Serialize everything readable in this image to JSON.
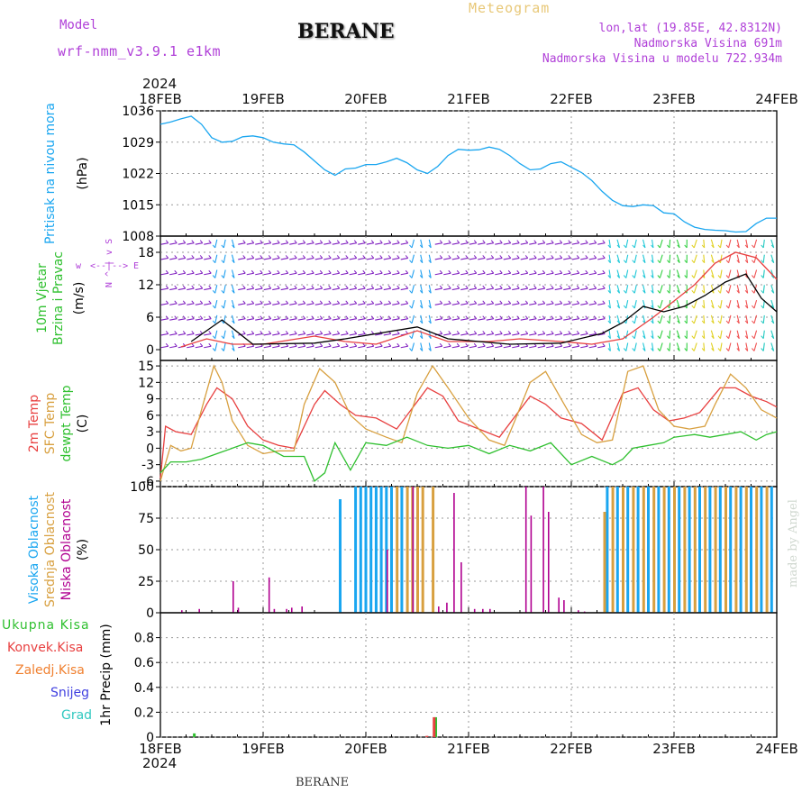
{
  "header": {
    "model_label": "Model",
    "model_name": "wrf-nmm_v3.9.1 e1km",
    "station": "BERANE",
    "chart_kind": "Meteogram",
    "lonlat": "lon,lat (19.85E, 42.8312N)",
    "altitude": "Nadmorska Visina 691m",
    "model_altitude": "Nadmorska Visina u modelu 722.934m",
    "year_top": "2024",
    "year_bottom": "2024",
    "footer_station": "BERANE",
    "watermark": "made by Angel"
  },
  "colors": {
    "purple_text": "#b040d8",
    "cyan": "#1aa6f0",
    "red": "#e84040",
    "orange_tan": "#d8a040",
    "green": "#30c030",
    "magenta": "#b00090",
    "blue_label": "#4040e0",
    "teal_label": "#30c8c0",
    "orange_label": "#f08030",
    "wind_purple": "#8020c0",
    "wind_cyan": "#20a0f0",
    "watermark": "#d0d8d0"
  },
  "chart_data": [
    {
      "type": "line",
      "panel": "pressure",
      "ylabel_lines": [
        "Pritisak na nivou mora"
      ],
      "unit": "(hPa)",
      "ylim": [
        1008,
        1036
      ],
      "yticks": [
        1008,
        1015,
        1022,
        1029,
        1036
      ],
      "xlim": [
        0,
        6
      ],
      "xticks": [
        "18FEB",
        "19FEB",
        "20FEB",
        "21FEB",
        "22FEB",
        "23FEB",
        "24FEB"
      ],
      "grid": true,
      "series": [
        {
          "color": "#1aa6f0",
          "x": [
            0,
            0.1,
            0.2,
            0.3,
            0.4,
            0.5,
            0.6,
            0.7,
            0.8,
            0.9,
            1.0,
            1.1,
            1.2,
            1.3,
            1.4,
            1.5,
            1.6,
            1.7,
            1.8,
            1.9,
            2.0,
            2.1,
            2.2,
            2.3,
            2.4,
            2.5,
            2.6,
            2.7,
            2.8,
            2.9,
            3.0,
            3.1,
            3.2,
            3.3,
            3.4,
            3.5,
            3.6,
            3.7,
            3.8,
            3.9,
            4.0,
            4.1,
            4.2,
            4.3,
            4.4,
            4.5,
            4.6,
            4.7,
            4.8,
            4.9,
            5.0,
            5.1,
            5.2,
            5.3,
            5.4,
            5.5,
            5.6,
            5.7,
            5.8,
            5.9,
            6.0
          ],
          "y": [
            1033.0,
            1033.5,
            1034.2,
            1034.8,
            1033.0,
            1030.0,
            1029.0,
            1029.2,
            1030.2,
            1030.4,
            1030.0,
            1029.0,
            1028.6,
            1028.4,
            1026.8,
            1024.8,
            1022.8,
            1021.6,
            1023.0,
            1023.2,
            1024.0,
            1024.0,
            1024.6,
            1025.4,
            1024.4,
            1022.8,
            1022.0,
            1023.6,
            1026.0,
            1027.4,
            1027.2,
            1027.3,
            1027.9,
            1027.4,
            1026.0,
            1024.2,
            1022.8,
            1023.0,
            1024.2,
            1024.6,
            1023.4,
            1022.2,
            1020.4,
            1018.0,
            1016.0,
            1014.8,
            1014.6,
            1015.0,
            1014.8,
            1013.2,
            1013.0,
            1011.2,
            1010.0,
            1009.5,
            1009.3,
            1009.2,
            1008.9,
            1009.0,
            1010.8,
            1012.0,
            1012.0
          ]
        }
      ]
    },
    {
      "type": "line",
      "panel": "wind",
      "ylabel_lines": [
        "10m Vjetar",
        "Brzina i Pravac"
      ],
      "unit": "(m/s)",
      "compass_labels": [
        "w",
        "<--|-->",
        "E",
        "N",
        "^",
        "|",
        "v",
        "S"
      ],
      "ylim": [
        -2,
        21
      ],
      "yticks": [
        0,
        6,
        12,
        18
      ],
      "xlim": [
        0,
        6
      ],
      "grid": true,
      "barb_levels": [
        0.5,
        2.8,
        5.6,
        8.4,
        11.2,
        14.0,
        16.8,
        19.6
      ],
      "barb_color_bands": [
        {
          "from": 0.0,
          "to": 0.5,
          "color": "#8020c0"
        },
        {
          "from": 0.5,
          "to": 0.72,
          "color": "#20a0f0"
        },
        {
          "from": 0.72,
          "to": 2.4,
          "color": "#8020c0"
        },
        {
          "from": 2.4,
          "to": 2.68,
          "color": "#20a0f0"
        },
        {
          "from": 2.68,
          "to": 4.35,
          "color": "#8020c0"
        },
        {
          "from": 4.35,
          "to": 4.8,
          "color": "#20c8d8"
        },
        {
          "from": 4.8,
          "to": 5.2,
          "color": "#30d040"
        },
        {
          "from": 5.2,
          "to": 5.5,
          "color": "#e0d020"
        },
        {
          "from": 5.5,
          "to": 5.8,
          "color": "#f05050"
        },
        {
          "from": 5.8,
          "to": 6.0,
          "color": "#20c8c0"
        }
      ],
      "series": [
        {
          "name": "",
          "color": "#e84040",
          "x": [
            0.2,
            0.45,
            0.7,
            1.0,
            1.5,
            1.8,
            2.1,
            2.5,
            2.8,
            3.2,
            3.5,
            3.9,
            4.2,
            4.5,
            4.8,
            5.0,
            5.2,
            5.4,
            5.6,
            5.8,
            6.0
          ],
          "y": [
            0.5,
            2.0,
            1.0,
            1.0,
            2.5,
            1.5,
            1.0,
            3.5,
            1.5,
            1.5,
            2.0,
            1.5,
            1.0,
            2.0,
            6.0,
            9.0,
            12.0,
            16.0,
            18.0,
            17.0,
            13.0
          ]
        },
        {
          "name": "",
          "color": "#000000",
          "x": [
            0.3,
            0.6,
            0.9,
            1.5,
            1.8,
            2.5,
            2.8,
            3.4,
            3.9,
            4.3,
            4.5,
            4.7,
            4.9,
            5.1,
            5.3,
            5.5,
            5.7,
            5.85,
            6.0
          ],
          "y": [
            1.5,
            5.5,
            1.0,
            1.2,
            2.0,
            4.2,
            2.0,
            1.0,
            1.2,
            3.0,
            5.0,
            8.0,
            7.0,
            8.0,
            10.0,
            12.5,
            14.0,
            9.5,
            7.0
          ]
        }
      ]
    },
    {
      "type": "line",
      "panel": "temperature",
      "ylabel_lines": [
        "2m Temp",
        "SFC Temp",
        "dewpt Temp"
      ],
      "unit": "(C)",
      "ylim": [
        -7,
        16
      ],
      "yticks": [
        -6,
        -3,
        0,
        3,
        6,
        9,
        12,
        15
      ],
      "xlim": [
        0,
        6
      ],
      "grid": true,
      "series": [
        {
          "name": "2m Temp",
          "color": "#e84040",
          "x": [
            0,
            0.05,
            0.15,
            0.3,
            0.45,
            0.55,
            0.7,
            0.85,
            1.0,
            1.15,
            1.3,
            1.5,
            1.6,
            1.75,
            1.9,
            2.1,
            2.3,
            2.5,
            2.6,
            2.75,
            2.9,
            3.1,
            3.3,
            3.5,
            3.6,
            3.75,
            3.9,
            4.1,
            4.3,
            4.5,
            4.65,
            4.8,
            4.95,
            5.1,
            5.25,
            5.45,
            5.6,
            5.75,
            5.9,
            6.0
          ],
          "y": [
            -5.5,
            4.0,
            3.0,
            2.5,
            8.0,
            11.0,
            9.0,
            4.0,
            1.5,
            0.5,
            0.0,
            8.0,
            10.5,
            8.0,
            6.0,
            5.5,
            3.5,
            8.5,
            11.0,
            9.5,
            5.0,
            3.5,
            2.0,
            7.0,
            9.5,
            8.0,
            5.5,
            4.5,
            1.5,
            10.0,
            11.0,
            7.0,
            5.0,
            5.5,
            6.5,
            11.0,
            11.0,
            9.5,
            8.5,
            7.5
          ]
        },
        {
          "name": "SFC Temp",
          "color": "#d8a040",
          "x": [
            0,
            0.1,
            0.2,
            0.3,
            0.4,
            0.52,
            0.6,
            0.7,
            0.85,
            1.0,
            1.15,
            1.3,
            1.4,
            1.55,
            1.7,
            1.85,
            2.0,
            2.2,
            2.35,
            2.5,
            2.65,
            2.8,
            3.0,
            3.2,
            3.35,
            3.45,
            3.6,
            3.75,
            3.9,
            4.1,
            4.25,
            4.4,
            4.55,
            4.7,
            4.85,
            5.0,
            5.15,
            5.3,
            5.4,
            5.55,
            5.7,
            5.85,
            6.0
          ],
          "y": [
            -6.0,
            0.5,
            -0.5,
            0.0,
            7.0,
            15.0,
            12.0,
            5.0,
            0.5,
            -1.0,
            -0.5,
            -0.5,
            8.0,
            14.5,
            12.0,
            6.0,
            3.5,
            2.0,
            1.0,
            10.0,
            15.0,
            11.0,
            5.5,
            1.5,
            0.5,
            5.0,
            12.0,
            14.0,
            9.0,
            2.5,
            1.0,
            1.5,
            14.0,
            15.0,
            7.0,
            4.0,
            3.5,
            4.0,
            8.0,
            13.5,
            11.0,
            7.0,
            5.5
          ]
        },
        {
          "name": "dewpt Temp",
          "color": "#30c030",
          "x": [
            0,
            0.1,
            0.25,
            0.4,
            0.55,
            0.7,
            0.85,
            1.0,
            1.2,
            1.4,
            1.5,
            1.6,
            1.7,
            1.85,
            2.0,
            2.2,
            2.4,
            2.6,
            2.8,
            3.0,
            3.2,
            3.4,
            3.6,
            3.8,
            4.0,
            4.2,
            4.4,
            4.5,
            4.6,
            4.75,
            4.9,
            5.0,
            5.2,
            5.35,
            5.5,
            5.65,
            5.8,
            5.9,
            6.0
          ],
          "y": [
            -4.5,
            -2.5,
            -2.5,
            -2.0,
            -1.0,
            0.0,
            1.0,
            0.5,
            -1.5,
            -1.5,
            -6.0,
            -4.5,
            1.0,
            -4.0,
            1.0,
            0.5,
            2.0,
            0.5,
            0.0,
            0.5,
            -1.0,
            0.5,
            -0.5,
            1.0,
            -3.0,
            -1.5,
            -3.0,
            -2.0,
            0.0,
            0.5,
            1.0,
            2.0,
            2.5,
            2.0,
            2.5,
            3.0,
            1.5,
            2.5,
            3.0
          ]
        }
      ]
    },
    {
      "type": "bar",
      "panel": "cloud",
      "ylabel_lines": [
        "Visoka Oblacnost",
        "Srednja Oblacnost",
        "Niska Oblacnost"
      ],
      "unit": "(%)",
      "ylim": [
        0,
        100
      ],
      "yticks": [
        0,
        25,
        50,
        75,
        100
      ],
      "xlim": [
        0,
        6
      ],
      "grid": true,
      "series": [
        {
          "name": "Visoka Oblacnost",
          "color": "#1aa6f0",
          "bars": [
            [
              1.75,
              90
            ],
            [
              1.9,
              100
            ],
            [
              1.95,
              100
            ],
            [
              2.0,
              100
            ],
            [
              2.05,
              100
            ],
            [
              2.1,
              100
            ],
            [
              2.15,
              100
            ],
            [
              2.2,
              100
            ],
            [
              2.25,
              100
            ],
            [
              2.35,
              100
            ],
            [
              4.35,
              100
            ],
            [
              4.45,
              100
            ],
            [
              4.55,
              100
            ],
            [
              4.65,
              100
            ],
            [
              4.75,
              100
            ],
            [
              4.85,
              100
            ],
            [
              4.95,
              100
            ],
            [
              5.05,
              100
            ],
            [
              5.15,
              100
            ],
            [
              5.25,
              100
            ],
            [
              5.35,
              100
            ],
            [
              5.45,
              100
            ],
            [
              5.55,
              100
            ],
            [
              5.65,
              100
            ],
            [
              5.75,
              100
            ],
            [
              5.85,
              100
            ],
            [
              5.95,
              100
            ]
          ]
        },
        {
          "name": "Srednja Oblacnost",
          "color": "#d8a040",
          "bars": [
            [
              2.3,
              100
            ],
            [
              2.4,
              100
            ],
            [
              2.45,
              100
            ],
            [
              2.5,
              100
            ],
            [
              2.55,
              100
            ],
            [
              2.65,
              100
            ],
            [
              4.32,
              80
            ],
            [
              4.4,
              100
            ],
            [
              4.5,
              100
            ],
            [
              4.6,
              100
            ],
            [
              4.7,
              100
            ],
            [
              4.8,
              100
            ],
            [
              4.9,
              100
            ],
            [
              5.0,
              100
            ],
            [
              5.1,
              100
            ],
            [
              5.2,
              100
            ],
            [
              5.3,
              100
            ],
            [
              5.4,
              100
            ],
            [
              5.5,
              100
            ],
            [
              5.6,
              100
            ],
            [
              5.7,
              100
            ],
            [
              5.8,
              100
            ],
            [
              5.9,
              100
            ]
          ]
        },
        {
          "name": "Niska Oblacnost",
          "color": "#b00090",
          "bars": [
            [
              0.2,
              2
            ],
            [
              0.37,
              3
            ],
            [
              0.7,
              25
            ],
            [
              0.75,
              4
            ],
            [
              1.05,
              28
            ],
            [
              1.1,
              3
            ],
            [
              1.22,
              3
            ],
            [
              1.27,
              4
            ],
            [
              1.37,
              5
            ],
            [
              2.2,
              50
            ],
            [
              2.45,
              100
            ],
            [
              2.7,
              5
            ],
            [
              2.78,
              8
            ],
            [
              2.85,
              95
            ],
            [
              2.92,
              40
            ],
            [
              3.05,
              3
            ],
            [
              3.13,
              3
            ],
            [
              3.2,
              3
            ],
            [
              3.55,
              100
            ],
            [
              3.6,
              77
            ],
            [
              3.72,
              100
            ],
            [
              3.77,
              80
            ],
            [
              3.87,
              12
            ],
            [
              3.92,
              10
            ],
            [
              4.06,
              2
            ],
            [
              4.12,
              1
            ]
          ]
        }
      ]
    },
    {
      "type": "bar",
      "panel": "precipitation",
      "ylabel_lines": [
        "1hr Precip (mm)"
      ],
      "legend": [
        "Ukupna Kisa",
        "Konvek.Kisa",
        "Zaledj.Kisa",
        "Snijeg",
        "Grad"
      ],
      "ylim": [
        0,
        1.0
      ],
      "yticks": [
        0,
        0.2,
        0.4,
        0.6,
        0.8
      ],
      "xlim": [
        0,
        6
      ],
      "grid": true,
      "series": [
        {
          "name": "Ukupna Kisa",
          "color": "#30c030",
          "bars": [
            [
              0.33,
              0.03
            ],
            [
              2.68,
              0.16
            ]
          ]
        },
        {
          "name": "Konvek.Kisa",
          "color": "#e84040",
          "bars": [
            [
              2.59,
              0.01
            ],
            [
              2.66,
              0.16
            ]
          ]
        },
        {
          "name": "Zaledj.Kisa",
          "color": "#f08030",
          "bars": []
        },
        {
          "name": "Snijeg",
          "color": "#4040e0",
          "bars": []
        },
        {
          "name": "Grad",
          "color": "#30c8c0",
          "bars": []
        }
      ]
    }
  ]
}
